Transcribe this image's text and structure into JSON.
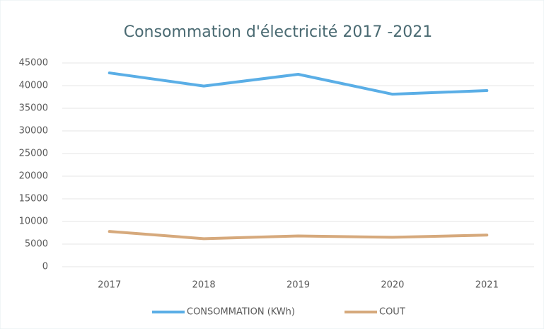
{
  "chart_data": {
    "type": "line",
    "title": "Consommation d'électricité 2017 -2021",
    "categories": [
      "2017",
      "2018",
      "2019",
      "2020",
      "2021"
    ],
    "series": [
      {
        "name": "CONSOMMATION (KWh)",
        "color": "#5aaee6",
        "values": [
          42800,
          39900,
          42500,
          38100,
          38900
        ]
      },
      {
        "name": "COUT",
        "color": "#d6a97c",
        "values": [
          7800,
          6200,
          6800,
          6500,
          7000
        ]
      }
    ],
    "ylim": [
      0,
      45000
    ],
    "yticks": [
      0,
      5000,
      10000,
      15000,
      20000,
      25000,
      30000,
      35000,
      40000,
      45000
    ],
    "grid": true,
    "legend": "bottom"
  }
}
